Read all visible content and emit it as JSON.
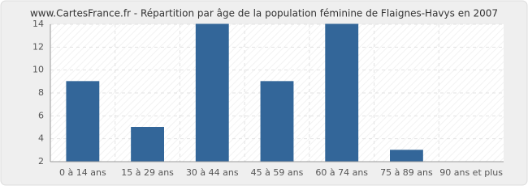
{
  "chart_data": {
    "type": "bar",
    "title": "www.CartesFrance.fr - Répartition par âge de la population féminine de Flaignes-Havys en 2007",
    "categories": [
      "0 à 14 ans",
      "15 à 29 ans",
      "30 à 44 ans",
      "45 à 59 ans",
      "60 à 74 ans",
      "75 à 89 ans",
      "90 ans et plus"
    ],
    "values": [
      9,
      5,
      14,
      9,
      14,
      3,
      2
    ],
    "color": "#336699",
    "ylim": [
      2,
      14
    ],
    "yticks": [
      2,
      4,
      6,
      8,
      10,
      12,
      14
    ],
    "grid": true
  }
}
